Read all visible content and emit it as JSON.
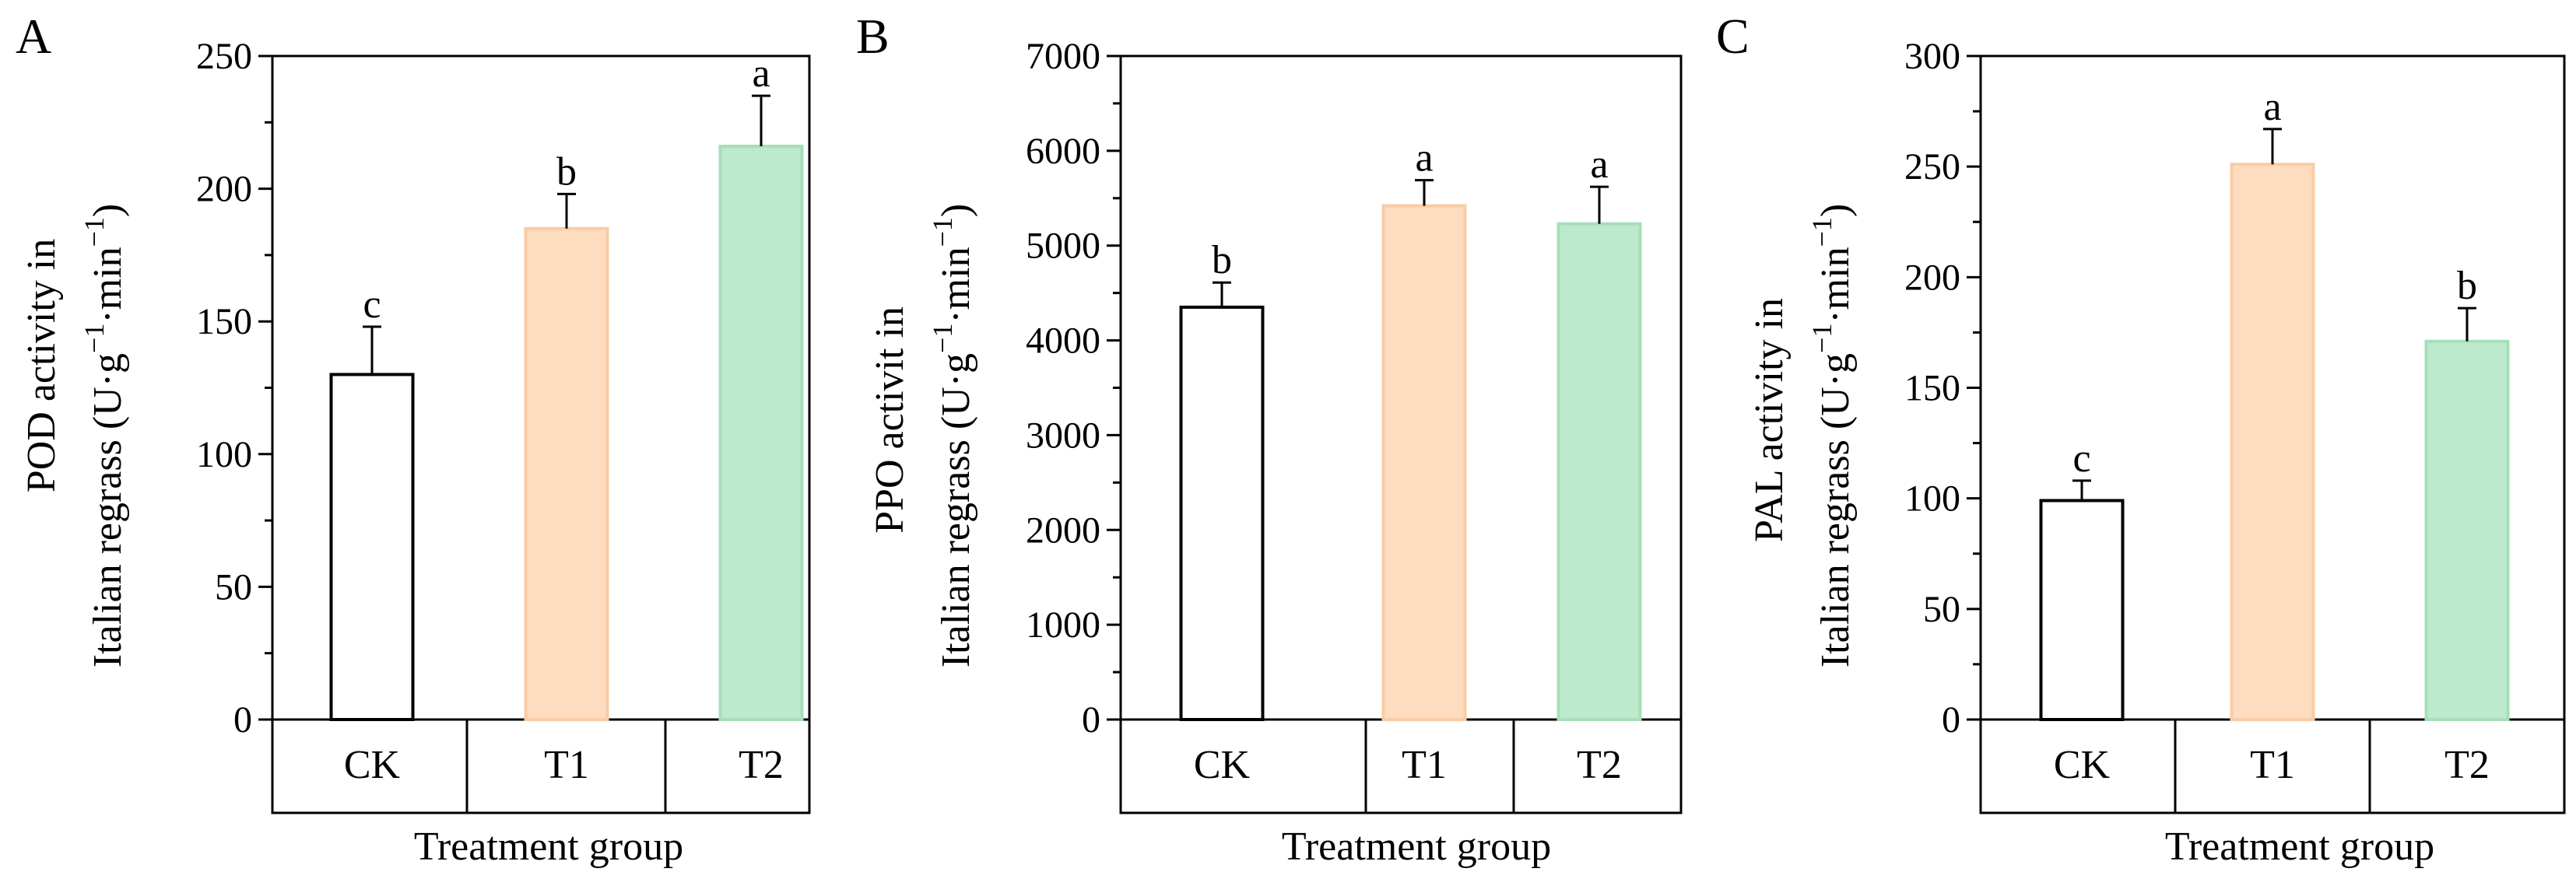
{
  "chart_data": [
    {
      "panel": "A",
      "type": "bar",
      "title": "",
      "categories": [
        "CK",
        "T1",
        "T2"
      ],
      "values": [
        130,
        185,
        216
      ],
      "errors": [
        18,
        13,
        19
      ],
      "significance": [
        "c",
        "b",
        "a"
      ],
      "colors": [
        "#ffffff",
        "#fddcbf",
        "#bde9cd"
      ],
      "edge_colors": [
        "#000000",
        "#f9ccA4",
        "#a6dfba"
      ],
      "ylabel_line1": "POD activity in",
      "ylabel_line2": "Italian regrass (U·g",
      "ylabel_unit_sup1": "−1",
      "ylabel_unit_mid": "·min",
      "ylabel_unit_sup2": "−1",
      "ylabel_unit_end": ")",
      "xlabel": "Treatment group",
      "ylim": [
        0,
        250
      ],
      "yticks": [
        0,
        50,
        100,
        150,
        200,
        250
      ],
      "ytick_labels": [
        "0",
        "50",
        "100",
        "150",
        "200",
        "250"
      ],
      "minor_step": 25
    },
    {
      "panel": "B",
      "type": "bar",
      "title": "",
      "categories": [
        "CK",
        "T1",
        "T2"
      ],
      "values": [
        4350,
        5420,
        5230
      ],
      "errors": [
        260,
        270,
        390
      ],
      "significance": [
        "b",
        "a",
        "a"
      ],
      "colors": [
        "#ffffff",
        "#fddcbf",
        "#bde9cd"
      ],
      "edge_colors": [
        "#000000",
        "#f9cca4",
        "#a6dfba"
      ],
      "ylabel_line1": "PPO activit in",
      "ylabel_line2": "Italian regrass (U·g",
      "ylabel_unit_sup1": "−1",
      "ylabel_unit_mid": "·min",
      "ylabel_unit_sup2": "−1",
      "ylabel_unit_end": ")",
      "xlabel": "Treatment group",
      "ylim": [
        0,
        7000
      ],
      "yticks": [
        0,
        1000,
        2000,
        3000,
        4000,
        5000,
        6000,
        7000
      ],
      "ytick_labels": [
        "0",
        "1000",
        "2000",
        "3000",
        "4000",
        "5000",
        "6000",
        "7000"
      ],
      "minor_step": 500
    },
    {
      "panel": "C",
      "type": "bar",
      "title": "",
      "categories": [
        "CK",
        "T1",
        "T2"
      ],
      "values": [
        99,
        251,
        171
      ],
      "errors": [
        9,
        16,
        15
      ],
      "significance": [
        "c",
        "a",
        "b"
      ],
      "colors": [
        "#ffffff",
        "#fddcbf",
        "#bde9cd"
      ],
      "edge_colors": [
        "#000000",
        "#f9cca4",
        "#a6dfba"
      ],
      "ylabel_line1": "PAL activity in",
      "ylabel_line2": "Italian regrass (U·g",
      "ylabel_unit_sup1": "−1",
      "ylabel_unit_mid": "·min",
      "ylabel_unit_sup2": "−1",
      "ylabel_unit_end": ")",
      "xlabel": "Treatment group",
      "ylim": [
        0,
        300
      ],
      "yticks": [
        0,
        50,
        100,
        150,
        200,
        250,
        300
      ],
      "ytick_labels": [
        "0",
        "50",
        "100",
        "150",
        "200",
        "250",
        "300"
      ],
      "minor_step": 25
    }
  ]
}
